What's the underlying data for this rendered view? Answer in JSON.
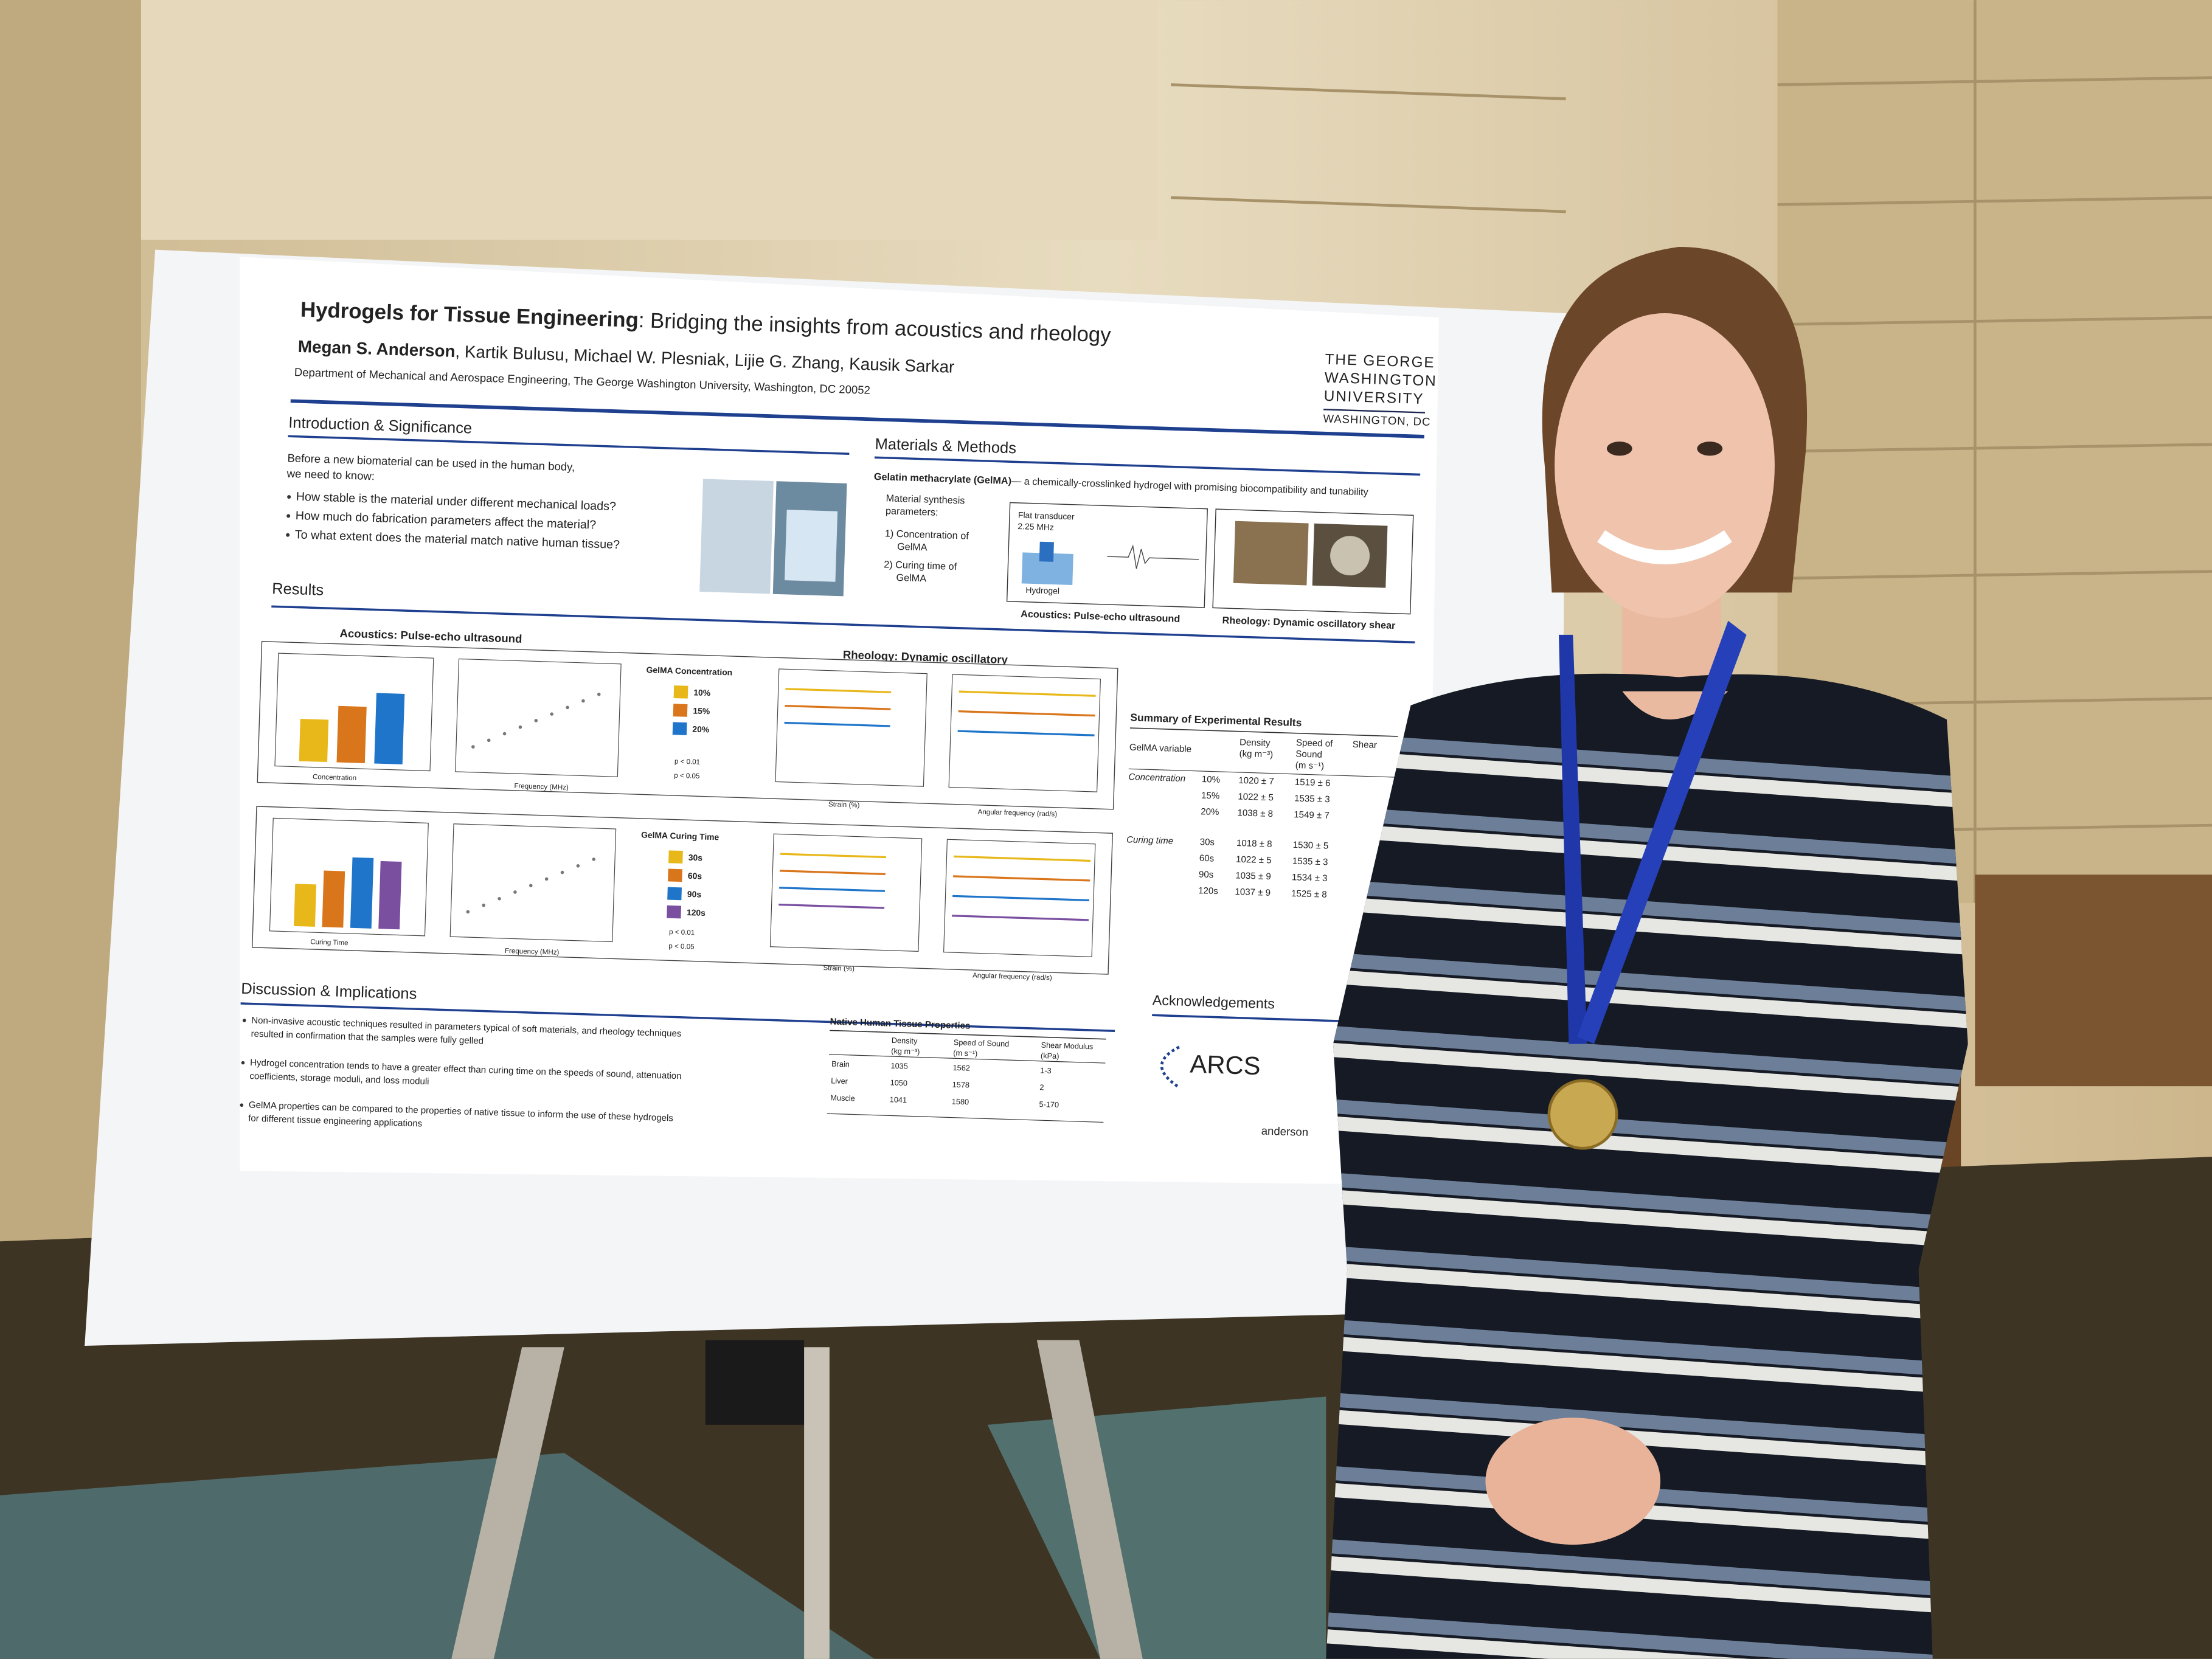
{
  "poster": {
    "title_bold": "Hydrogels for Tissue Engineering",
    "title_rest": ": Bridging the insights from acoustics and rheology",
    "authors_lead": "Megan S. Anderson",
    "authors_rest": ", Kartik Bulusu, Michael W. Plesniak, Lijie G. Zhang, Kausik Sarkar",
    "affiliation": "Department of Mechanical and Aerospace Engineering, The George Washington University, Washington, DC 20052",
    "logo": [
      "THE GEORGE",
      "WASHINGTON",
      "UNIVERSITY",
      "WASHINGTON, DC"
    ],
    "introduction": {
      "heading": "Introduction & Significance",
      "lead": [
        "Before a new biomaterial can be used in the human body,",
        "we need to know:"
      ],
      "bullets": [
        "How stable is the material under different mechanical loads?",
        "How much do fabrication parameters affect the material?",
        "To what extent does the material match native human tissue?"
      ]
    },
    "methods": {
      "heading": "Materials & Methods",
      "gelma_bold": "Gelatin methacrylate (GelMA)",
      "gelma_rest": " — a chemically-crosslinked hydrogel with promising biocompatibility and tunability",
      "synthesis": [
        "Material synthesis",
        "parameters:",
        "1) Concentration of",
        "GelMA",
        "2) Curing time of",
        "GelMA"
      ],
      "transducer": [
        "Flat transducer",
        "2.25 MHz"
      ],
      "hydrogel": "Hydrogel",
      "captions": [
        "Acoustics: Pulse-echo ultrasound",
        "Rheology: Dynamic oscillatory shear"
      ]
    },
    "results": {
      "heading": "Results",
      "acoustics": "Acoustics: Pulse-echo ultrasound",
      "rheology": "Rheology: Dynamic oscillatory",
      "concentration_legend": {
        "title": "GelMA Concentration",
        "items": [
          "10%",
          "15%",
          "20%"
        ]
      },
      "curing_legend": {
        "title": "GelMA Curing Time",
        "items": [
          "30s",
          "60s",
          "90s",
          "120s"
        ]
      },
      "significance": [
        "p < 0.01",
        "p < 0.05"
      ],
      "axis_labels": [
        "Concentration",
        "Frequency (MHz)",
        "Strain (%)",
        "Angular frequency (rad/s)",
        "Curing Time"
      ]
    },
    "summary": {
      "title": "Summary of Experimental Results",
      "headers": [
        "GelMA variable",
        "Density",
        "(kg m⁻³)",
        "Speed of",
        "Sound",
        "(m s⁻¹)",
        "Shear"
      ],
      "groups": [
        {
          "name": "Concentration",
          "rows": [
            [
              "10%",
              "1020 ± 7",
              "1519 ± 6"
            ],
            [
              "15%",
              "1022 ± 5",
              "1535 ± 3"
            ],
            [
              "20%",
              "1038 ± 8",
              "1549 ± 7"
            ]
          ]
        },
        {
          "name": "Curing time",
          "rows": [
            [
              "30s",
              "1018 ± 8",
              "1530 ± 5"
            ],
            [
              "60s",
              "1022 ± 5",
              "1535 ± 3"
            ],
            [
              "90s",
              "1035 ± 9",
              "1534 ± 3"
            ],
            [
              "120s",
              "1037 ± 9",
              "1525 ± 8"
            ]
          ]
        }
      ]
    },
    "discussion": {
      "heading": "Discussion & Implications",
      "bullets": [
        [
          "Non-invasive acoustic techniques resulted in parameters typical of soft materials, and rheology techniques",
          "resulted in confirmation that the samples were fully gelled"
        ],
        [
          "Hydrogel concentration tends to have a greater effect than curing time on the speeds of sound, attenuation",
          "coefficients, storage moduli, and loss moduli"
        ],
        [
          "GelMA properties can be compared to the properties of native tissue to inform the use of these hydrogels",
          "for different tissue engineering applications"
        ]
      ]
    },
    "native_tissue": {
      "title": "Native Human Tissue Properties",
      "headers": [
        [
          "Density",
          "(kg m⁻³)"
        ],
        [
          "Speed of Sound",
          "(m s⁻¹)"
        ],
        [
          "Shear Modulus",
          "(kPa)"
        ]
      ],
      "rows": [
        [
          "Brain",
          "1035",
          "1562",
          "1-3"
        ],
        [
          "Liver",
          "1050",
          "1578",
          "2"
        ],
        [
          "Muscle",
          "1041",
          "1580",
          "5-170"
        ]
      ]
    },
    "acknowledgements": {
      "heading": "Acknowledgements",
      "logo": "ARCS",
      "footer": "anderson"
    }
  }
}
